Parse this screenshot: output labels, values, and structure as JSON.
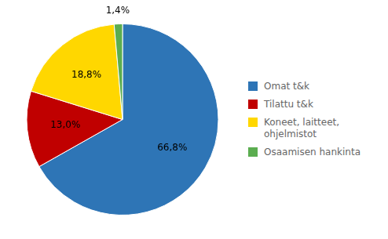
{
  "chart_data": {
    "type": "pie",
    "categories": [
      "Omat t&k",
      "Tilattu t&k",
      "Koneet, laitteet,\nohjelmistot",
      "Osaamisen hankinta"
    ],
    "values": [
      66.8,
      13.0,
      18.8,
      1.4
    ],
    "value_labels": [
      "66,8%",
      "13,0%",
      "18,8%",
      "1,4%"
    ],
    "colors": [
      "#2E75B6",
      "#C00000",
      "#FFD700",
      "#5BAD50"
    ],
    "data_labels": true,
    "legend": "right"
  }
}
